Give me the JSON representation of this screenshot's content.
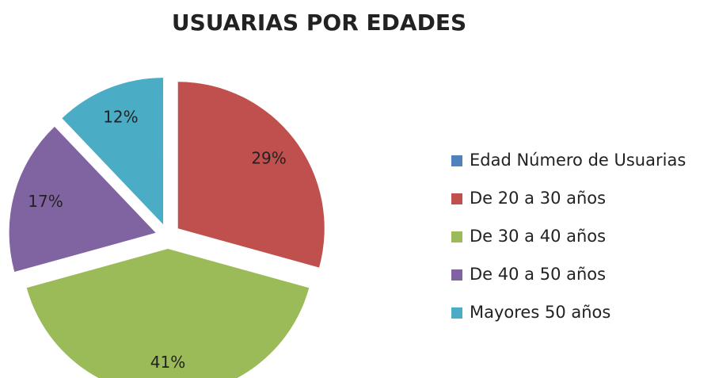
{
  "chart_data": {
    "type": "pie",
    "title": "USUARIAS POR EDADES",
    "categories": [
      "Edad Número de Usuarias",
      "De 20 a 30 años",
      "De 30 a 40 años",
      "De 40  a 50 años",
      "Mayores 50  años"
    ],
    "values": [
      null,
      29,
      41,
      17,
      12
    ],
    "value_labels": [
      null,
      "29%",
      "41%",
      "17%",
      "12%"
    ],
    "colors": [
      "#4f81bd",
      "#c0504d",
      "#9bbb59",
      "#8064a2",
      "#4bacc6"
    ],
    "exploded": true,
    "legend": "right"
  }
}
